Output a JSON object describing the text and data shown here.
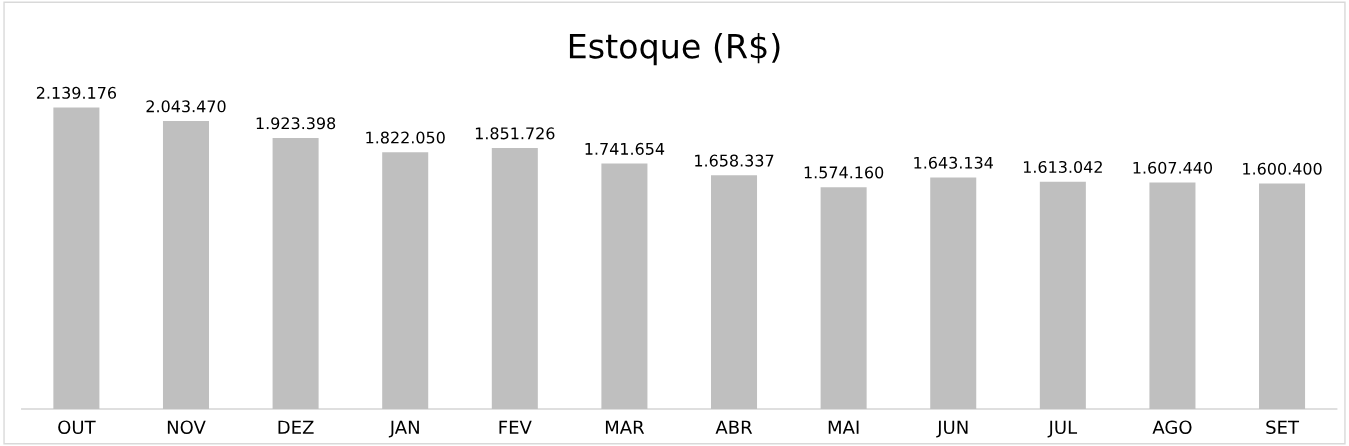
{
  "chart_data": {
    "type": "bar",
    "title": "Estoque (R$)",
    "categories": [
      "OUT",
      "NOV",
      "DEZ",
      "JAN",
      "FEV",
      "MAR",
      "ABR",
      "MAI",
      "JUN",
      "JUL",
      "AGO",
      "SET"
    ],
    "values": [
      2139176,
      2043470,
      1923398,
      1822050,
      1851726,
      1741654,
      1658337,
      1574160,
      1643134,
      1613042,
      1607440,
      1600400
    ],
    "value_labels": [
      "2.139.176",
      "2.043.470",
      "1.923.398",
      "1.822.050",
      "1.851.726",
      "1.741.654",
      "1.658.337",
      "1.574.160",
      "1.643.134",
      "1.613.042",
      "1.607.440",
      "1.600.400"
    ],
    "color": "#bfbfbf"
  }
}
